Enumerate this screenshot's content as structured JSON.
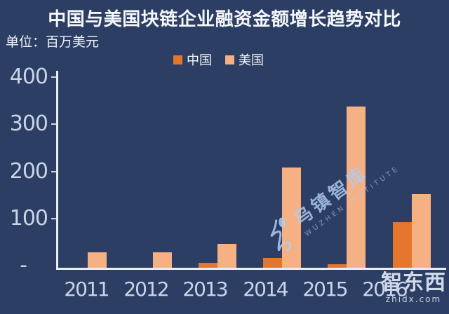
{
  "title": "中国与美国块链企业融资金额增长趋势对比",
  "unit_label": "单位：百万美元",
  "legend": [
    {
      "label": "中国",
      "color": "#e5762c"
    },
    {
      "label": "美国",
      "color": "#f5b183"
    }
  ],
  "colors": {
    "background": "#2c3e63",
    "china_bar": "#e5762c",
    "us_bar": "#f5b183",
    "axis": "#e9edf5",
    "tick_label": "#c9d4e8",
    "text": "#f4f7fb",
    "watermark_blue": "#b2ccf0"
  },
  "chart_data": {
    "type": "bar",
    "title": "中国与美国块链企业融资金额增长趋势对比",
    "categories": [
      "2011",
      "2012",
      "2013",
      "2014",
      "2015",
      "2016"
    ],
    "series": [
      {
        "name": "中国",
        "color": "#e5762c",
        "values": [
          0,
          0,
          10,
          20,
          8,
          95
        ]
      },
      {
        "name": "美国",
        "color": "#f5b183",
        "values": [
          32,
          33,
          50,
          210,
          338,
          155
        ]
      }
    ],
    "xlabel": "",
    "ylabel": "百万美元",
    "y_ticks": [
      "400",
      "300",
      "200",
      "100",
      "-"
    ],
    "y_tick_values": [
      400,
      300,
      200,
      100,
      0
    ],
    "ylim": [
      0,
      400
    ],
    "grid": false,
    "legend_position": "top-center"
  },
  "watermarks": {
    "center": {
      "text": "乌镇智库",
      "subtext": "WUZHEN  INSTITUTE"
    },
    "corner": {
      "text": "智东西",
      "subtext": "zhidx.com"
    }
  }
}
